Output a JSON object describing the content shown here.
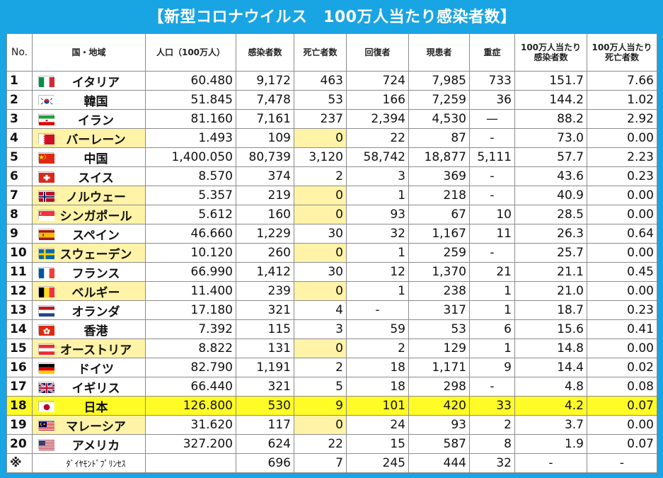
{
  "title": "【新型コロナウイルス　100万人当たり感染者数】",
  "colors": {
    "frame": "#19a4e3",
    "highlight_red": "#e8262a",
    "zero_death_yellow": "#fff3a8",
    "japan_row_yellow": "#fffb26"
  },
  "chart_data": {
    "type": "table",
    "title": "【新型コロナウイルス　100万人当たり感染者数】",
    "columns": [
      "No.",
      "国・地域",
      "人口（100万人）",
      "感染者数",
      "死亡者数",
      "回復者",
      "現患者",
      "重症",
      "100万人当たり感染者数",
      "100万人当たり死亡者数"
    ],
    "rows": [
      {
        "no": "1",
        "country": "イタリア",
        "flag": "flag-italy",
        "population": "60.480",
        "infected": "9,172",
        "deaths": "463",
        "recovered": "724",
        "current": "7,985",
        "serious": "733",
        "per_million_infected": "151.7",
        "per_million_deaths": "7.66"
      },
      {
        "no": "2",
        "country": "韓国",
        "flag": "flag-south-korea",
        "population": "51.845",
        "infected": "7,478",
        "deaths": "53",
        "recovered": "166",
        "current": "7,259",
        "serious": "36",
        "per_million_infected": "144.2",
        "per_million_deaths": "1.02"
      },
      {
        "no": "3",
        "country": "イラン",
        "flag": "flag-iran",
        "population": "81.160",
        "infected": "7,161",
        "deaths": "237",
        "recovered": "2,394",
        "current": "4,530",
        "serious": "—",
        "per_million_infected": "88.2",
        "per_million_deaths": "2.92"
      },
      {
        "no": "4",
        "country": "バーレーン",
        "flag": "flag-bahrain",
        "population": "1.493",
        "infected": "109",
        "deaths": "0",
        "recovered": "22",
        "current": "87",
        "serious": "-",
        "per_million_infected": "73.0",
        "per_million_deaths": "0.00"
      },
      {
        "no": "5",
        "country": "中国",
        "flag": "flag-china",
        "population": "1,400.050",
        "infected": "80,739",
        "deaths": "3,120",
        "recovered": "58,742",
        "current": "18,877",
        "serious": "5,111",
        "per_million_infected": "57.7",
        "per_million_deaths": "2.23"
      },
      {
        "no": "6",
        "country": "スイス",
        "flag": "flag-switzerland",
        "population": "8.570",
        "infected": "374",
        "deaths": "2",
        "recovered": "3",
        "current": "369",
        "serious": "-",
        "per_million_infected": "43.6",
        "per_million_deaths": "0.23"
      },
      {
        "no": "7",
        "country": "ノルウェー",
        "flag": "flag-norway",
        "population": "5.357",
        "infected": "219",
        "deaths": "0",
        "recovered": "1",
        "current": "218",
        "serious": "-",
        "per_million_infected": "40.9",
        "per_million_deaths": "0.00"
      },
      {
        "no": "8",
        "country": "シンガポール",
        "flag": "flag-singapore",
        "population": "5.612",
        "infected": "160",
        "deaths": "0",
        "recovered": "93",
        "current": "67",
        "serious": "10",
        "per_million_infected": "28.5",
        "per_million_deaths": "0.00"
      },
      {
        "no": "9",
        "country": "スペイン",
        "flag": "flag-spain",
        "population": "46.660",
        "infected": "1,229",
        "deaths": "30",
        "recovered": "32",
        "current": "1,167",
        "serious": "11",
        "per_million_infected": "26.3",
        "per_million_deaths": "0.64"
      },
      {
        "no": "10",
        "country": "スウェーデン",
        "flag": "flag-sweden",
        "population": "10.120",
        "infected": "260",
        "deaths": "0",
        "recovered": "1",
        "current": "259",
        "serious": "-",
        "per_million_infected": "25.7",
        "per_million_deaths": "0.00"
      },
      {
        "no": "11",
        "country": "フランス",
        "flag": "flag-france",
        "population": "66.990",
        "infected": "1,412",
        "deaths": "30",
        "recovered": "12",
        "current": "1,370",
        "serious": "21",
        "per_million_infected": "21.1",
        "per_million_deaths": "0.45"
      },
      {
        "no": "12",
        "country": "ベルギー",
        "flag": "flag-belgium",
        "population": "11.400",
        "infected": "239",
        "deaths": "0",
        "recovered": "1",
        "current": "238",
        "serious": "1",
        "per_million_infected": "21.0",
        "per_million_deaths": "0.00"
      },
      {
        "no": "13",
        "country": "オランダ",
        "flag": "flag-netherlands",
        "population": "17.180",
        "infected": "321",
        "deaths": "4",
        "recovered": "-",
        "current": "317",
        "serious": "1",
        "per_million_infected": "18.7",
        "per_million_deaths": "0.23"
      },
      {
        "no": "14",
        "country": "香港",
        "flag": "flag-hong-kong",
        "population": "7.392",
        "infected": "115",
        "deaths": "3",
        "recovered": "59",
        "current": "53",
        "serious": "6",
        "per_million_infected": "15.6",
        "per_million_deaths": "0.41"
      },
      {
        "no": "15",
        "country": "オーストリア",
        "flag": "flag-austria",
        "population": "8.822",
        "infected": "131",
        "deaths": "0",
        "recovered": "2",
        "current": "129",
        "serious": "1",
        "per_million_infected": "14.8",
        "per_million_deaths": "0.00"
      },
      {
        "no": "16",
        "country": "ドイツ",
        "flag": "flag-germany",
        "population": "82.790",
        "infected": "1,191",
        "deaths": "2",
        "recovered": "18",
        "current": "1,171",
        "serious": "9",
        "per_million_infected": "14.4",
        "per_million_deaths": "0.02"
      },
      {
        "no": "17",
        "country": "イギリス",
        "flag": "flag-uk",
        "population": "66.440",
        "infected": "321",
        "deaths": "5",
        "recovered": "18",
        "current": "298",
        "serious": "-",
        "per_million_infected": "4.8",
        "per_million_deaths": "0.08"
      },
      {
        "no": "18",
        "country": "日本",
        "flag": "flag-japan",
        "population": "126.800",
        "infected": "530",
        "deaths": "9",
        "recovered": "101",
        "current": "420",
        "serious": "33",
        "per_million_infected": "4.2",
        "per_million_deaths": "0.07"
      },
      {
        "no": "19",
        "country": "マレーシア",
        "flag": "flag-malaysia",
        "population": "31.620",
        "infected": "117",
        "deaths": "0",
        "recovered": "24",
        "current": "93",
        "serious": "2",
        "per_million_infected": "3.7",
        "per_million_deaths": "0.00"
      },
      {
        "no": "20",
        "country": "アメリカ",
        "flag": "flag-usa",
        "population": "327.200",
        "infected": "624",
        "deaths": "22",
        "recovered": "15",
        "current": "587",
        "serious": "8",
        "per_million_infected": "1.9",
        "per_million_deaths": "0.07"
      },
      {
        "no": "※",
        "country": "ﾀﾞｲﾔﾓﾝﾄﾞﾌﾟﾘﾝｾｽ",
        "flag": "",
        "population": "",
        "infected": "696",
        "deaths": "7",
        "recovered": "245",
        "current": "444",
        "serious": "32",
        "per_million_infected": "-",
        "per_million_deaths": "-"
      }
    ],
    "red_infected_rows": [
      "1",
      "2",
      "3",
      "5",
      "9",
      "11",
      "16"
    ],
    "red_deaths_rows": [
      "1",
      "2",
      "3",
      "5",
      "9",
      "11",
      "20"
    ],
    "yellow_country_rows": [
      "4",
      "7",
      "8",
      "10",
      "12",
      "15",
      "19"
    ],
    "yellow_deaths_rows": [
      "4",
      "7",
      "8",
      "10",
      "12",
      "15",
      "19"
    ],
    "red_per_million_infected_rows": [
      "1",
      "2",
      "3",
      "4",
      "5",
      "6",
      "7",
      "8",
      "9",
      "10",
      "11",
      "12",
      "13",
      "14",
      "15",
      "16"
    ],
    "red_per_million_deaths_rows": [
      "1",
      "2",
      "3",
      "5"
    ],
    "highlight_row": "18"
  }
}
